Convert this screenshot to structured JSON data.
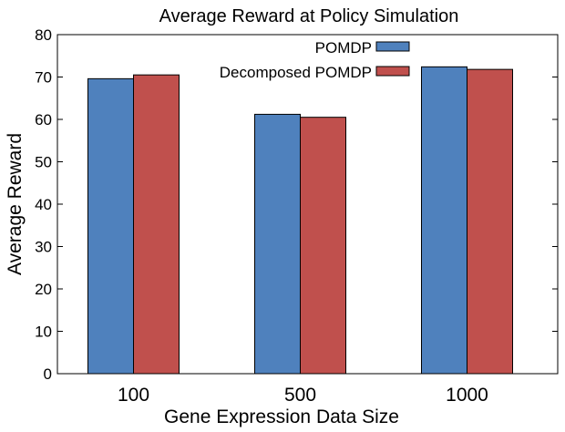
{
  "chart_data": {
    "type": "bar",
    "title": "Average Reward at Policy Simulation",
    "xlabel": "Gene Expression Data Size",
    "ylabel": "Average Reward",
    "categories": [
      "100",
      "500",
      "1000"
    ],
    "series": [
      {
        "name": "POMDP",
        "color": "#4f81bd",
        "values": [
          69.6,
          61.2,
          72.4
        ]
      },
      {
        "name": "Decomposed POMDP",
        "color": "#c0504d",
        "values": [
          70.5,
          60.5,
          71.8
        ]
      }
    ],
    "ylim": [
      0,
      80
    ],
    "yticks": [
      0,
      10,
      20,
      30,
      40,
      50,
      60,
      70,
      80
    ],
    "legend_position": "top-right",
    "grid": false
  }
}
